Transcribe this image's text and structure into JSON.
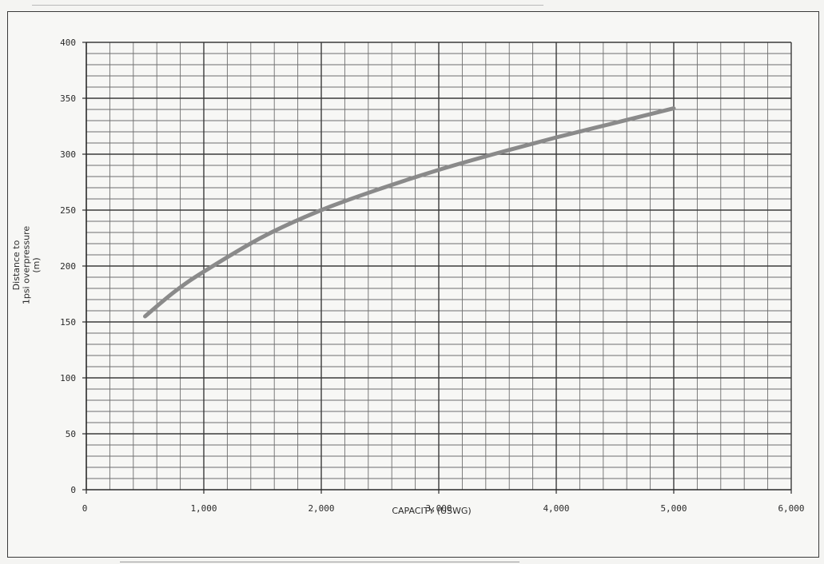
{
  "chart_data": {
    "type": "line",
    "xlabel": "CAPACITY (USWG)",
    "ylabel_lines": [
      "Distance to",
      "1psi overpressure",
      "(m)"
    ],
    "xlim": [
      0,
      6000
    ],
    "ylim": [
      0,
      400
    ],
    "x_ticks": [
      0,
      1000,
      2000,
      3000,
      4000,
      5000,
      6000
    ],
    "x_tick_labels": [
      "0",
      "1,000",
      "2,000",
      "3,000",
      "4,000",
      "5,000",
      "6,000"
    ],
    "y_ticks": [
      0,
      50,
      100,
      150,
      200,
      250,
      300,
      350,
      400
    ],
    "y_tick_labels": [
      "0",
      "50",
      "100",
      "150",
      "200",
      "250",
      "300",
      "350",
      "400"
    ],
    "grid": true,
    "series": [
      {
        "color": "#8a8a8a",
        "x": [
          500,
          750,
          1000,
          1500,
          2000,
          2500,
          3000,
          3500,
          4000,
          4500,
          5000
        ],
        "y": [
          155,
          177,
          195,
          226,
          250,
          269,
          286,
          301,
          315,
          328,
          341
        ]
      }
    ]
  }
}
